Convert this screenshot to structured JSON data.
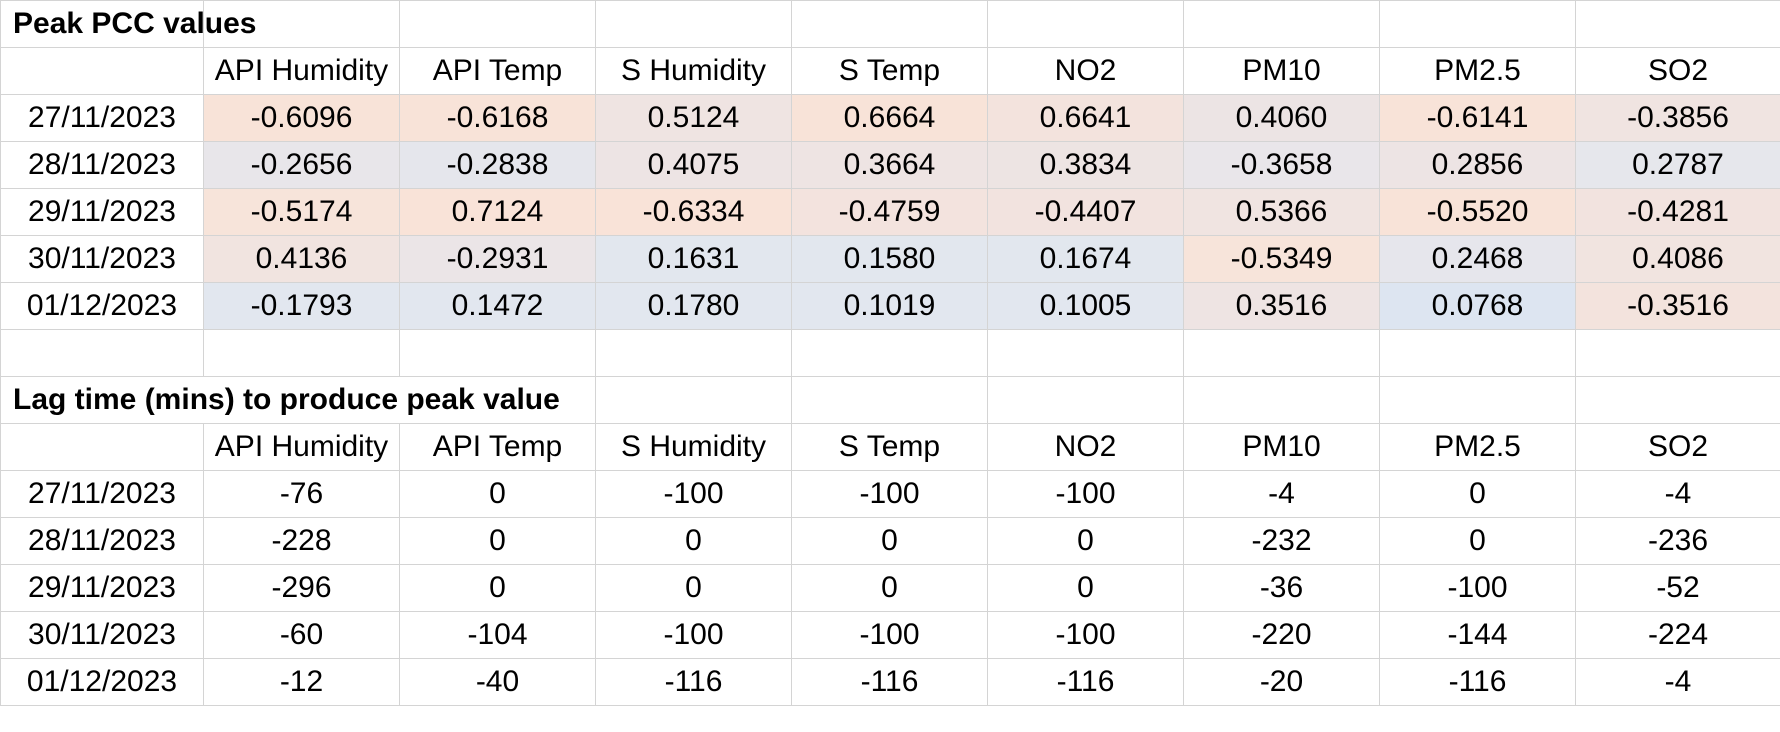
{
  "pcc": {
    "title": "Peak PCC values",
    "headers": [
      "API Humidity",
      "API Temp",
      "S Humidity",
      "S Temp",
      "NO2",
      "PM10",
      "PM2.5",
      "SO2"
    ],
    "rows": [
      {
        "date": "27/11/2023",
        "values": [
          "-0.6096",
          "-0.6168",
          "0.5124",
          "0.6664",
          "0.6641",
          "0.4060",
          "-0.6141",
          "-0.3856"
        ]
      },
      {
        "date": "28/11/2023",
        "values": [
          "-0.2656",
          "-0.2838",
          "0.4075",
          "0.3664",
          "0.3834",
          "-0.3658",
          "0.2856",
          "0.2787"
        ]
      },
      {
        "date": "29/11/2023",
        "values": [
          "-0.5174",
          "0.7124",
          "-0.6334",
          "-0.4759",
          "-0.4407",
          "0.5366",
          "-0.5520",
          "-0.4281"
        ]
      },
      {
        "date": "30/11/2023",
        "values": [
          "0.4136",
          "-0.2931",
          "0.1631",
          "0.1580",
          "0.1674",
          "-0.5349",
          "0.2468",
          "0.4086"
        ]
      },
      {
        "date": "01/12/2023",
        "values": [
          "-0.1793",
          "0.1472",
          "0.1780",
          "0.1019",
          "0.1005",
          "0.3516",
          "0.0768",
          "-0.3516"
        ]
      }
    ],
    "cell_colors": [
      [
        "#f8e3d8",
        "#f8e3d8",
        "#efe4e2",
        "#f8e3d8",
        "#f3e3dd",
        "#ece4e4",
        "#f8e3d8",
        "#f0e4e1"
      ],
      [
        "#e8e6ea",
        "#e5e6ec",
        "#ede4e4",
        "#eee4e3",
        "#ede4e3",
        "#e9e6ea",
        "#ede4e4",
        "#e6e7ec"
      ],
      [
        "#f7e4da",
        "#f9e3d8",
        "#f9e3d8",
        "#f3e3de",
        "#f2e3df",
        "#f0e4e1",
        "#f8e3d8",
        "#f2e3df"
      ],
      [
        "#f1e4e0",
        "#ebe5e7",
        "#e2e7ee",
        "#e2e7ee",
        "#e2e7ee",
        "#f7e4da",
        "#e6e6ec",
        "#f1e4e0"
      ],
      [
        "#e2e7ef",
        "#e2e7ef",
        "#e2e7ef",
        "#e2e7ef",
        "#e2e7ef",
        "#eee4e3",
        "#dde5f1",
        "#f3e3dd"
      ]
    ]
  },
  "lag": {
    "title": "Lag time (mins) to produce peak value",
    "headers": [
      "API Humidity",
      "API Temp",
      "S Humidity",
      "S Temp",
      "NO2",
      "PM10",
      "PM2.5",
      "SO2"
    ],
    "rows": [
      {
        "date": "27/11/2023",
        "values": [
          "-76",
          "0",
          "-100",
          "-100",
          "-100",
          "-4",
          "0",
          "-4"
        ]
      },
      {
        "date": "28/11/2023",
        "values": [
          "-228",
          "0",
          "0",
          "0",
          "0",
          "-232",
          "0",
          "-236"
        ]
      },
      {
        "date": "29/11/2023",
        "values": [
          "-296",
          "0",
          "0",
          "0",
          "0",
          "-36",
          "-100",
          "-52"
        ]
      },
      {
        "date": "30/11/2023",
        "values": [
          "-60",
          "-104",
          "-100",
          "-100",
          "-100",
          "-220",
          "-144",
          "-224"
        ]
      },
      {
        "date": "01/12/2023",
        "values": [
          "-12",
          "-40",
          "-116",
          "-116",
          "-116",
          "-20",
          "-116",
          "-4"
        ]
      }
    ]
  }
}
